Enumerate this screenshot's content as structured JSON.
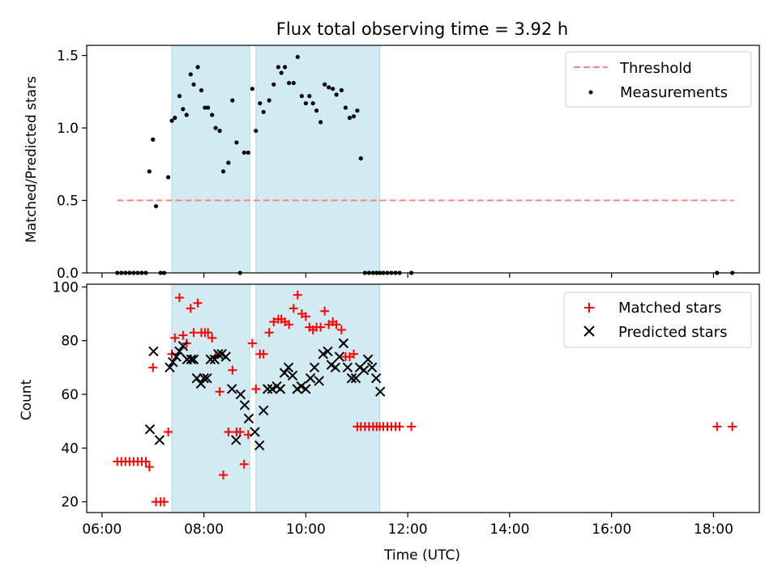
{
  "figure": {
    "title": "Flux total observing time = 3.92 h",
    "xlabel": "Time (UTC)"
  },
  "chart_data": [
    {
      "type": "scatter",
      "title": "Flux total observing time = 3.92 h",
      "ylabel": "Matched/Predicted stars",
      "xlabel": "",
      "x_unit": "hours UTC",
      "xlim": [
        5.7,
        18.9
      ],
      "ylim": [
        0,
        1.57
      ],
      "yticks": [
        0.0,
        0.5,
        1.0,
        1.5
      ],
      "yticklabels": [
        "0.0",
        "0.5",
        "1.0",
        "1.5"
      ],
      "grid": false,
      "legend": "top-right",
      "shaded_spans": [
        [
          7.37,
          8.9
        ],
        [
          9.02,
          11.45
        ]
      ],
      "shade_color": "#add8e6",
      "threshold": {
        "name": "Threshold",
        "y": 0.5,
        "x": [
          6.3,
          18.4
        ],
        "color": "#ff8080",
        "style": "dashed"
      },
      "series": [
        {
          "name": "Measurements",
          "color": "#000000",
          "marker": "dot",
          "x": [
            6.3,
            6.38,
            6.46,
            6.54,
            6.62,
            6.7,
            6.78,
            6.86,
            6.93,
            7.0,
            7.06,
            7.15,
            7.22,
            7.3,
            7.37,
            7.43,
            7.52,
            7.59,
            7.66,
            7.74,
            7.8,
            7.88,
            7.95,
            8.02,
            8.08,
            8.16,
            8.23,
            8.31,
            8.38,
            8.48,
            8.56,
            8.64,
            8.71,
            8.79,
            8.87,
            8.95,
            9.02,
            9.1,
            9.17,
            9.28,
            9.37,
            9.46,
            9.52,
            9.59,
            9.67,
            9.76,
            9.84,
            9.92,
            10.0,
            10.07,
            10.14,
            10.21,
            10.29,
            10.37,
            10.45,
            10.53,
            10.6,
            10.7,
            10.78,
            10.86,
            10.94,
            11.01,
            11.08,
            11.16,
            11.24,
            11.32,
            11.39,
            11.45,
            11.52,
            11.6,
            11.68,
            11.76,
            11.84,
            12.07,
            18.07,
            18.37
          ],
          "y": [
            0,
            0,
            0,
            0,
            0,
            0,
            0,
            0,
            0.7,
            0.92,
            0.46,
            0,
            0,
            0.66,
            1.05,
            1.07,
            1.22,
            1.13,
            1.09,
            1.37,
            1.3,
            1.42,
            1.26,
            1.14,
            1.14,
            1.09,
            1.0,
            0.98,
            0.7,
            0.76,
            1.19,
            0.9,
            0,
            0.83,
            0.83,
            1.27,
            0.98,
            1.17,
            1.11,
            1.19,
            1.3,
            1.42,
            1.38,
            1.42,
            1.31,
            1.31,
            1.49,
            1.22,
            1.17,
            1.22,
            1.17,
            1.12,
            1.04,
            1.3,
            1.28,
            1.27,
            1.23,
            1.26,
            1.14,
            1.07,
            1.08,
            1.12,
            0.79,
            0,
            0,
            0,
            0,
            0,
            0,
            0,
            0,
            0,
            0,
            0,
            0,
            0
          ]
        }
      ]
    },
    {
      "type": "scatter",
      "title": "",
      "ylabel": "Count",
      "xlabel": "Time (UTC)",
      "x_unit": "hours UTC",
      "xlim": [
        5.7,
        18.9
      ],
      "ylim": [
        16,
        101
      ],
      "yticks": [
        20,
        40,
        60,
        80,
        100
      ],
      "yticklabels": [
        "20",
        "40",
        "60",
        "80",
        "100"
      ],
      "xticks": [
        6,
        8,
        10,
        12,
        14,
        16,
        18
      ],
      "xticklabels": [
        "06:00",
        "08:00",
        "10:00",
        "12:00",
        "14:00",
        "16:00",
        "18:00"
      ],
      "grid": false,
      "legend": "top-right",
      "shaded_spans": [
        [
          7.37,
          8.9
        ],
        [
          9.02,
          11.45
        ]
      ],
      "shade_color": "#add8e6",
      "series": [
        {
          "name": "Matched stars",
          "color": "#ff0000",
          "marker": "plus",
          "x": [
            6.3,
            6.38,
            6.46,
            6.54,
            6.62,
            6.7,
            6.78,
            6.86,
            6.93,
            7.0,
            7.06,
            7.15,
            7.22,
            7.3,
            7.37,
            7.43,
            7.52,
            7.59,
            7.66,
            7.74,
            7.8,
            7.88,
            7.95,
            8.02,
            8.08,
            8.16,
            8.23,
            8.31,
            8.38,
            8.48,
            8.56,
            8.64,
            8.71,
            8.79,
            8.87,
            8.95,
            9.02,
            9.1,
            9.17,
            9.28,
            9.37,
            9.46,
            9.52,
            9.59,
            9.67,
            9.76,
            9.84,
            9.92,
            10.0,
            10.07,
            10.14,
            10.21,
            10.29,
            10.37,
            10.45,
            10.53,
            10.6,
            10.7,
            10.78,
            10.86,
            10.94,
            11.01,
            11.08,
            11.16,
            11.24,
            11.32,
            11.39,
            11.45,
            11.52,
            11.6,
            11.68,
            11.76,
            11.84,
            12.07,
            18.07,
            18.37
          ],
          "y": [
            35,
            35,
            35,
            35,
            35,
            35,
            35,
            35,
            33,
            70,
            20,
            20,
            20,
            46,
            75,
            81,
            96,
            82,
            79,
            92,
            83,
            94,
            83,
            83,
            83,
            81,
            74,
            61,
            30,
            46,
            69,
            46,
            46,
            34,
            45,
            79,
            62,
            75,
            75,
            83,
            87,
            88,
            88,
            87,
            86,
            92,
            97,
            90,
            89,
            85,
            84,
            85,
            85,
            91,
            86,
            87,
            86,
            84,
            74,
            74,
            75,
            48,
            48,
            48,
            48,
            48,
            48,
            48,
            48,
            48,
            48,
            48,
            48,
            48,
            48,
            48
          ]
        },
        {
          "name": "Predicted stars",
          "color": "#000000",
          "marker": "cross",
          "x": [
            6.94,
            7.01,
            7.13,
            7.33,
            7.39,
            7.46,
            7.52,
            7.59,
            7.67,
            7.75,
            7.8,
            7.86,
            7.94,
            8.0,
            8.06,
            8.13,
            8.21,
            8.28,
            8.35,
            8.43,
            8.55,
            8.63,
            8.72,
            8.8,
            8.88,
            9.0,
            9.09,
            9.17,
            9.25,
            9.34,
            9.43,
            9.5,
            9.58,
            9.66,
            9.74,
            9.83,
            9.91,
            10.0,
            10.09,
            10.17,
            10.26,
            10.34,
            10.43,
            10.5,
            10.58,
            10.66,
            10.74,
            10.82,
            10.9,
            10.98,
            11.06,
            11.14,
            11.22,
            11.3,
            11.38,
            11.46
          ],
          "y": [
            47,
            76,
            43,
            70,
            72,
            74,
            76,
            78,
            73,
            73,
            73,
            66,
            64,
            66,
            66,
            73,
            73,
            75,
            75,
            74,
            62,
            43,
            60,
            56,
            51,
            46,
            41,
            54,
            62,
            62,
            63,
            62,
            68,
            70,
            67,
            62,
            63,
            62,
            66,
            70,
            65,
            75,
            76,
            71,
            70,
            74,
            79,
            70,
            66,
            66,
            70,
            69,
            73,
            70,
            66,
            61
          ]
        }
      ]
    }
  ]
}
